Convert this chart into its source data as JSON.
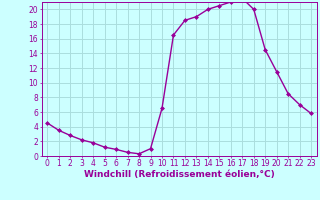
{
  "x": [
    0,
    1,
    2,
    3,
    4,
    5,
    6,
    7,
    8,
    9,
    10,
    11,
    12,
    13,
    14,
    15,
    16,
    17,
    18,
    19,
    20,
    21,
    22,
    23
  ],
  "y": [
    4.5,
    3.5,
    2.8,
    2.2,
    1.8,
    1.2,
    0.9,
    0.5,
    0.3,
    1.0,
    6.5,
    16.5,
    18.5,
    19.0,
    20.0,
    20.5,
    21.0,
    21.5,
    20.0,
    14.5,
    11.5,
    8.5,
    7.0,
    5.8
  ],
  "line_color": "#990099",
  "marker": "D",
  "marker_size": 2.0,
  "bg_color": "#ccffff",
  "grid_color": "#aadddd",
  "xlabel": "Windchill (Refroidissement éolien,°C)",
  "xlim": [
    -0.5,
    23.5
  ],
  "ylim": [
    0,
    21
  ],
  "xticks": [
    0,
    1,
    2,
    3,
    4,
    5,
    6,
    7,
    8,
    9,
    10,
    11,
    12,
    13,
    14,
    15,
    16,
    17,
    18,
    19,
    20,
    21,
    22,
    23
  ],
  "yticks": [
    0,
    2,
    4,
    6,
    8,
    10,
    12,
    14,
    16,
    18,
    20
  ],
  "xlabel_fontsize": 6.5,
  "tick_fontsize": 5.5,
  "line_width": 1.0
}
